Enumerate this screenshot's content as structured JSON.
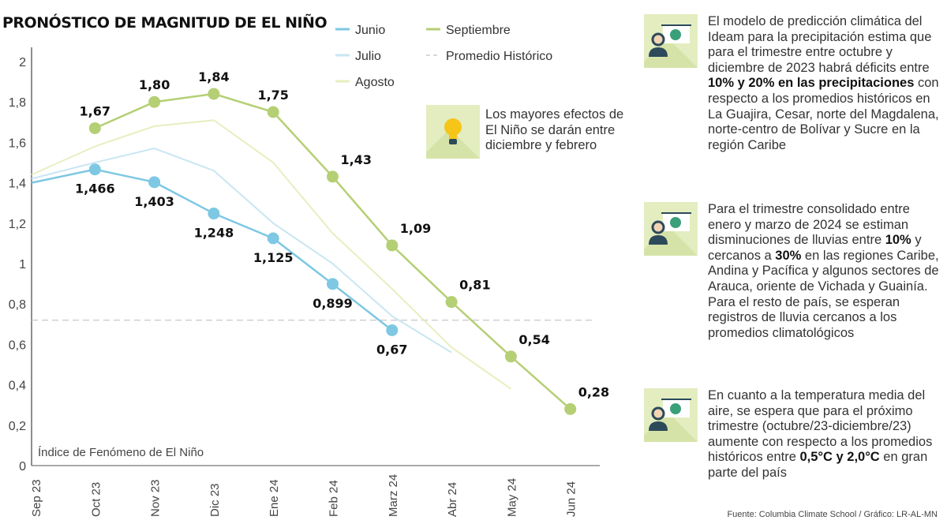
{
  "title": "PRONÓSTICO DE MAGNITUD DE EL NIÑO",
  "chart_data": {
    "type": "line",
    "title": "PRONÓSTICO DE MAGNITUD DE EL NIÑO",
    "ylabel": "Índice de Fenómeno de El Niño",
    "categories": [
      "Sep 23",
      "Oct 23",
      "Nov 23",
      "Dic 23",
      "Ene 24",
      "Feb 24",
      "Marz 24",
      "Abr 24",
      "May 24",
      "Jun 24"
    ],
    "ylim": [
      0,
      2
    ],
    "yticks": [
      "0",
      "0,2",
      "0,4",
      "0,6",
      "0,8",
      "1",
      "1,2",
      "1,4",
      "1,6",
      "1,8",
      "2"
    ],
    "grid": false,
    "legend_placement": "top-center",
    "series": [
      {
        "name": "Junio",
        "color": "#7ec8e3",
        "markers": true,
        "values": [
          1.4,
          1.466,
          1.403,
          1.248,
          1.125,
          0.899,
          0.67,
          null,
          null,
          null
        ],
        "labels": [
          null,
          "1,466",
          "1,403",
          "1,248",
          "1,125",
          "0,899",
          "0,67",
          null,
          null,
          null
        ]
      },
      {
        "name": "Julio",
        "color": "#c9e6f2",
        "markers": false,
        "values": [
          1.42,
          1.5,
          1.57,
          1.46,
          1.2,
          1.0,
          0.74,
          0.56,
          null,
          null
        ],
        "labels": []
      },
      {
        "name": "Agosto",
        "color": "#e6efbf",
        "markers": false,
        "values": [
          1.44,
          1.58,
          1.68,
          1.71,
          1.5,
          1.15,
          0.875,
          0.585,
          0.38,
          null
        ],
        "labels": []
      },
      {
        "name": "Septiembre",
        "color": "#b5cf74",
        "markers": true,
        "values": [
          null,
          1.67,
          1.8,
          1.84,
          1.75,
          1.43,
          1.09,
          0.81,
          0.54,
          0.28
        ],
        "labels": [
          null,
          "1,67",
          "1,80",
          "1,84",
          "1,75",
          "1,43",
          "1,09",
          "0,81",
          "0,54",
          "0,28"
        ]
      }
    ],
    "reference_line": {
      "name": "Promedio Histórico",
      "value": 0.72,
      "color": "#cccccc",
      "style": "dashed"
    }
  },
  "callout": {
    "text": "Los mayores efectos de El Niño se darán entre diciembre y febrero",
    "icon": "lightbulb-icon"
  },
  "notes": [
    {
      "icon": "presenter-globe-icon",
      "segments": [
        {
          "t": "El modelo de predicción climática del Ideam para la precipitación estima que para el trimestre entre octubre y diciembre de 2023 habrá déficits entre ",
          "b": false
        },
        {
          "t": "10% y 20% en las precipitaciones",
          "b": true
        },
        {
          "t": " con respecto a los promedios históricos en La Guajira, Cesar, norte del Magdalena, norte-centro de Bolívar y Sucre en la región Caribe",
          "b": false
        }
      ]
    },
    {
      "icon": "presenter-globe-icon",
      "segments": [
        {
          "t": "Para el trimestre consolidado entre enero y marzo de 2024 se estiman disminuciones de lluvias entre ",
          "b": false
        },
        {
          "t": "10%",
          "b": true
        },
        {
          "t": " y cercanos a ",
          "b": false
        },
        {
          "t": "30%",
          "b": true
        },
        {
          "t": " en las regiones Caribe, Andina y Pacífica y algunos sectores de Arauca, oriente de Vichada y Guainía. Para el resto de país, se esperan registros de lluvia cercanos a los promedios climatológicos",
          "b": false
        }
      ]
    },
    {
      "icon": "presenter-globe-icon",
      "segments": [
        {
          "t": "En cuanto a la temperatura media del aire, se espera que para el próximo trimestre (octubre/23-diciembre/23) aumente con respecto a los promedios históricos entre ",
          "b": false
        },
        {
          "t": "0,5°C y 2,0°C",
          "b": true
        },
        {
          "t": " en gran parte del país",
          "b": false
        }
      ]
    }
  ],
  "source": "Fuente: Columbia Climate School / Gráfico: LR-AL-MN"
}
